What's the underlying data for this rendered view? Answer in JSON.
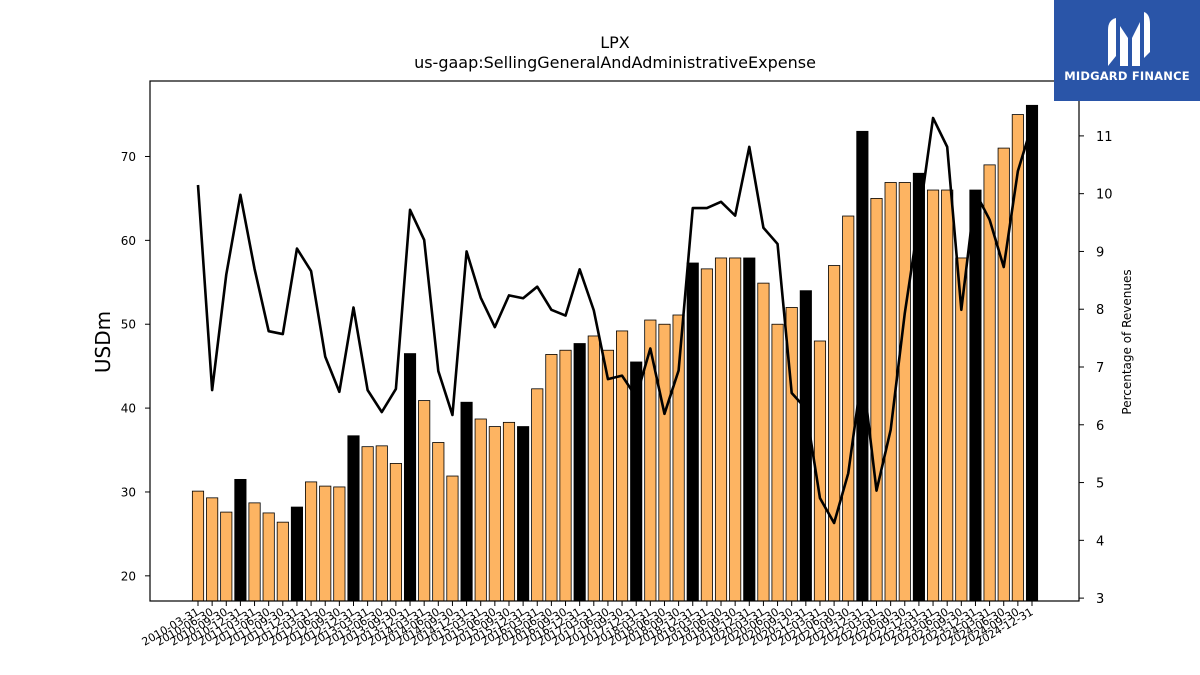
{
  "chart_data": {
    "type": "bar+line",
    "title": "LPX",
    "subtitle": "us-gaap:SellingGeneralAndAdministrativeExpense",
    "ylabel": "USDm",
    "y2label": "Percentage of Revenues",
    "ylim": [
      17,
      79
    ],
    "y2lim": [
      2.95,
      11.95
    ],
    "yticks": [
      20,
      30,
      40,
      50,
      60,
      70
    ],
    "y2ticks": [
      3,
      4,
      5,
      6,
      7,
      8,
      9,
      10,
      11
    ],
    "colors": {
      "bar": "#fdb462",
      "bar_year_end": "#000000",
      "line": "#000000"
    },
    "categories": [
      "2010-03-31",
      "2010-06-30",
      "2010-09-30",
      "2010-12-31",
      "2011-03-31",
      "2011-06-30",
      "2011-09-30",
      "2011-12-31",
      "2012-03-31",
      "2012-06-30",
      "2012-09-30",
      "2012-12-31",
      "2013-03-31",
      "2013-06-30",
      "2013-09-30",
      "2013-12-31",
      "2014-03-31",
      "2014-06-30",
      "2014-09-30",
      "2014-12-31",
      "2015-03-31",
      "2015-06-30",
      "2015-09-30",
      "2015-12-31",
      "2016-03-31",
      "2016-06-30",
      "2016-09-30",
      "2016-12-31",
      "2017-03-31",
      "2017-06-30",
      "2017-09-30",
      "2017-12-31",
      "2018-03-31",
      "2018-06-30",
      "2018-09-30",
      "2018-12-31",
      "2019-03-31",
      "2019-06-30",
      "2019-09-30",
      "2019-12-31",
      "2020-03-31",
      "2020-06-30",
      "2020-09-30",
      "2020-12-31",
      "2021-03-31",
      "2021-06-30",
      "2021-09-30",
      "2021-12-31",
      "2022-03-31",
      "2022-06-30",
      "2022-09-30",
      "2022-12-31",
      "2023-03-31",
      "2023-06-30",
      "2023-09-30",
      "2023-12-31",
      "2024-03-31",
      "2024-06-30",
      "2024-09-30",
      "2024-12-31"
    ],
    "x_tick_labels": [
      "2010-03-31",
      "2010-06-30",
      "2010-09-30",
      "2010-12-31",
      "2011-03-31",
      "2011-06-30",
      "2011-09-30",
      "2011-12-31",
      "2012-03-31",
      "2012-06-30",
      "2012-09-30",
      "2012-12-31",
      "2013-03-31",
      "2013-06-30",
      "2013-09-30",
      "2013-12-31",
      "2014-03-31",
      "2014-06-30",
      "2014-09-30",
      "2014-12-31",
      "2015-03-31",
      "2015-06-30",
      "2015-09-30",
      "2015-12-31",
      "2016-03-31",
      "2016-06-30",
      "2016-09-30",
      "2016-12-31",
      "2017-03-31",
      "2017-06-30",
      "2017-09-30",
      "2017-12-31",
      "2018-03-31",
      "2018-06-30",
      "2018-09-30",
      "2018-12-31",
      "2019-03-31",
      "2019-06-30",
      "2019-09-30",
      "2019-12-31",
      "2020-03-31",
      "2020-06-30",
      "2020-09-30",
      "2020-12-31",
      "2021-03-31",
      "2021-06-30",
      "2021-09-30",
      "2021-12-31",
      "2022-03-31",
      "2022-06-30",
      "2022-09-30",
      "2022-12-31",
      "2023-03-31",
      "2023-06-30",
      "2023-09-30",
      "2023-12-31",
      "2024-03-31",
      "2024-06-30",
      "2024-09-30",
      "2024-12-31"
    ],
    "sga_usdm": [
      30.1,
      29.3,
      27.6,
      31.5,
      28.7,
      27.5,
      26.4,
      28.2,
      31.2,
      30.7,
      30.6,
      36.7,
      35.4,
      35.5,
      33.4,
      46.5,
      40.9,
      35.9,
      31.9,
      40.7,
      38.7,
      37.8,
      38.3,
      37.8,
      42.3,
      46.4,
      46.9,
      47.7,
      48.6,
      46.9,
      49.2,
      45.5,
      50.5,
      50.0,
      51.1,
      57.3,
      56.6,
      57.9,
      57.9,
      57.9,
      54.9,
      50.0,
      52.0,
      54.0,
      48.0,
      57.0,
      62.9,
      73.0,
      65.0,
      66.9,
      66.9,
      68.0,
      66.0,
      66.0,
      57.9,
      66.0,
      69.0,
      71.0,
      75.0,
      76.1
    ],
    "pct_of_revenues": [
      10.15,
      6.6,
      8.6,
      9.98,
      8.7,
      7.62,
      7.57,
      9.05,
      8.66,
      7.18,
      6.57,
      8.03,
      6.6,
      6.22,
      6.62,
      9.72,
      9.2,
      6.93,
      6.17,
      9.0,
      8.2,
      7.69,
      8.24,
      8.19,
      8.39,
      7.99,
      7.89,
      8.69,
      7.98,
      6.79,
      6.85,
      6.48,
      7.32,
      6.19,
      6.94,
      9.75,
      9.75,
      9.86,
      9.62,
      10.81,
      9.41,
      9.13,
      6.55,
      6.28,
      4.73,
      4.3,
      5.16,
      6.93,
      4.86,
      5.91,
      7.93,
      9.56,
      11.31,
      10.81,
      7.99,
      10.02,
      9.55,
      8.73,
      10.39,
      11.19
    ]
  },
  "logo": {
    "name": "MIDGARD FINANCE"
  }
}
